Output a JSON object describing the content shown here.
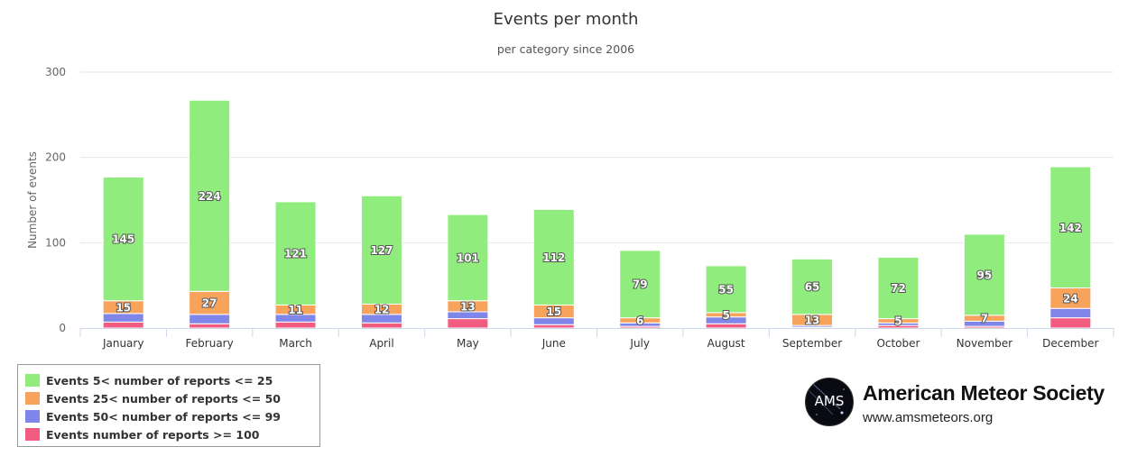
{
  "chart_data": {
    "type": "bar",
    "stacked": true,
    "title": "Events per month",
    "subtitle": "per category since 2006",
    "ylabel": "Number of events",
    "xlabel": "",
    "ylim": [
      0,
      300
    ],
    "yticks": [
      0,
      100,
      200,
      300
    ],
    "grid": true,
    "legend_position": "bottom-left",
    "categories": [
      "January",
      "February",
      "March",
      "April",
      "May",
      "June",
      "July",
      "August",
      "September",
      "October",
      "November",
      "December"
    ],
    "series": [
      {
        "name": "Events 5< number of reports <= 25",
        "color": "#90ed7d",
        "values": [
          145,
          224,
          121,
          127,
          101,
          112,
          79,
          55,
          65,
          72,
          95,
          142
        ]
      },
      {
        "name": "Events 25< number of reports <= 50",
        "color": "#f7a35c",
        "values": [
          15,
          27,
          11,
          12,
          13,
          15,
          6,
          5,
          13,
          5,
          7,
          24
        ]
      },
      {
        "name": "Events 50< number of reports <= 99",
        "color": "#8085e9",
        "values": [
          10,
          11,
          9,
          10,
          8,
          8,
          4,
          8,
          2,
          3,
          6,
          11
        ]
      },
      {
        "name": "Events number of reports >= 100",
        "color": "#f15c80",
        "values": [
          7,
          5,
          7,
          6,
          11,
          4,
          2,
          5,
          1,
          3,
          2,
          12
        ]
      }
    ]
  },
  "logo": {
    "badge": "AMS",
    "name": "American Meteor Society",
    "url": "www.amsmeteors.org"
  }
}
